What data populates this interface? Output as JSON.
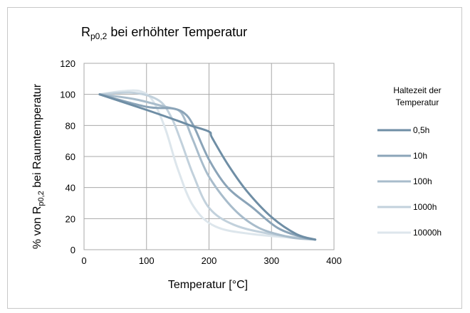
{
  "chart_data": {
    "type": "line",
    "title_main": "R",
    "title_sub": "p0,2",
    "title_rest": " bei erhöhter Temperatur",
    "xlabel": "Temperatur [°C]",
    "ylabel_prefix": "% von R",
    "ylabel_sub": "p0,2",
    "ylabel_suffix": " bei Raumtemperatur",
    "xlim": [
      0,
      400
    ],
    "ylim": [
      0,
      120
    ],
    "xticks": [
      0,
      100,
      200,
      300,
      400
    ],
    "yticks": [
      0,
      20,
      40,
      60,
      80,
      100,
      120
    ],
    "grid": true,
    "legend_position": "right",
    "legend_title_line1": "Haltezeit der",
    "legend_title_line2": "Temperatur",
    "series": [
      {
        "name": "0,5h",
        "color": "#6f8ea5",
        "x": [
          25,
          100,
          150,
          170,
          200,
          205,
          230,
          260,
          300,
          340,
          370
        ],
        "y": [
          100,
          90,
          83,
          80,
          76,
          72,
          55,
          38,
          21,
          10,
          6.5
        ]
      },
      {
        "name": "10h",
        "color": "#8ba4b8",
        "x": [
          25,
          100,
          140,
          160,
          175,
          200,
          230,
          270,
          310,
          350,
          370
        ],
        "y": [
          100,
          92,
          91,
          88,
          80,
          58,
          40,
          27,
          14,
          8,
          6.5
        ]
      },
      {
        "name": "100h",
        "color": "#a8bccb",
        "x": [
          25,
          80,
          130,
          150,
          160,
          175,
          200,
          240,
          280,
          330,
          370
        ],
        "y": [
          100,
          97,
          92,
          90,
          85,
          70,
          47,
          26,
          14,
          8,
          6.5
        ]
      },
      {
        "name": "1000h",
        "color": "#c2d1dc",
        "x": [
          25,
          80,
          120,
          140,
          155,
          175,
          200,
          240,
          300,
          370
        ],
        "y": [
          100,
          101,
          96,
          85,
          70,
          48,
          27,
          16,
          10,
          6.5
        ]
      },
      {
        "name": "10000h",
        "color": "#dde6ec",
        "x": [
          25,
          60,
          90,
          110,
          130,
          150,
          175,
          210,
          270,
          370
        ],
        "y": [
          100,
          102,
          102,
          96,
          78,
          52,
          28,
          15,
          10,
          6.5
        ]
      }
    ]
  }
}
